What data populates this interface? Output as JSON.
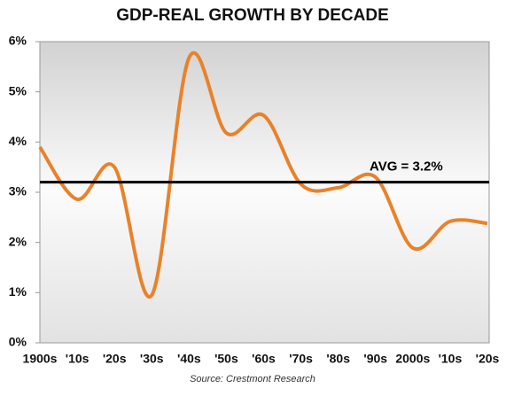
{
  "chart_data": {
    "type": "line",
    "title": "GDP-REAL GROWTH BY DECADE",
    "categories": [
      "1900s",
      "'10s",
      "'20s",
      "'30s",
      "'40s",
      "'50s",
      "'60s",
      "'70s",
      "'80s",
      "'90s",
      "2000s",
      "'10s",
      "'20s"
    ],
    "values": [
      3.9,
      2.86,
      3.5,
      0.95,
      5.68,
      4.18,
      4.53,
      3.16,
      3.09,
      3.3,
      1.89,
      2.42,
      2.38
    ],
    "color": "#e8822a",
    "ylim": [
      0,
      6
    ],
    "yticks": [
      {
        "value": 0,
        "label": "0%"
      },
      {
        "value": 1,
        "label": "1%"
      },
      {
        "value": 2,
        "label": "2%"
      },
      {
        "value": 3,
        "label": "3%"
      },
      {
        "value": 4,
        "label": "4%"
      },
      {
        "value": 5,
        "label": "5%"
      },
      {
        "value": 6,
        "label": "6%"
      }
    ],
    "reference_line": {
      "value": 3.2,
      "label": "AVG = 3.2%"
    },
    "source": "Source: Crestmont Research"
  }
}
